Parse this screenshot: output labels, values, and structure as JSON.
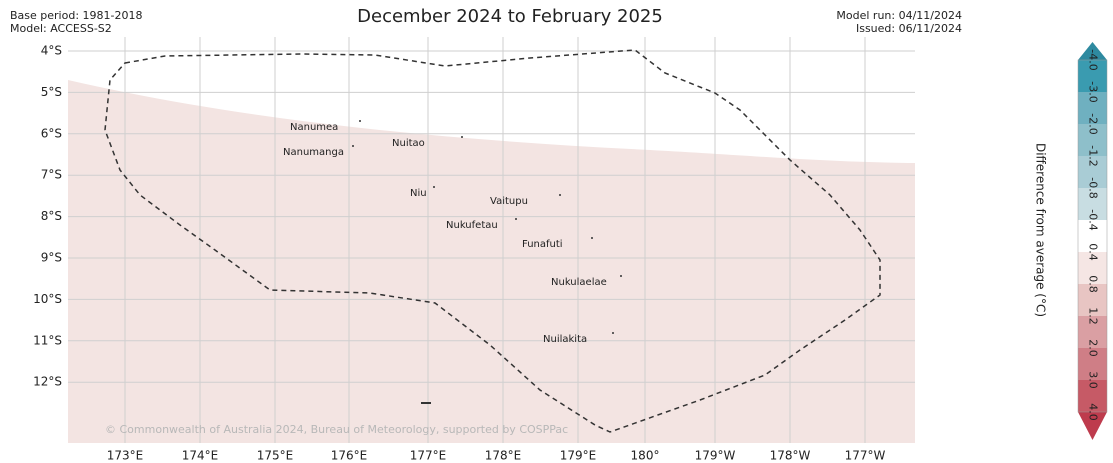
{
  "header": {
    "title": "December 2024 to February 2025",
    "base_period": "Base period: 1981-2018",
    "model": "Model: ACCESS-S2",
    "model_run": "Model run: 04/11/2024",
    "issued": "Issued: 06/11/2024"
  },
  "map": {
    "lat_labels": [
      "4°S",
      "5°S",
      "6°S",
      "7°S",
      "8°S",
      "9°S",
      "10°S",
      "11°S",
      "12°S"
    ],
    "lon_labels": [
      "173°E",
      "174°E",
      "175°E",
      "176°E",
      "177°E",
      "178°E",
      "179°E",
      "180°",
      "179°W",
      "178°W",
      "177°W"
    ],
    "islands": [
      "Nanumea",
      "Nanumanga",
      "Nuitao",
      "Niu",
      "Vaitupu",
      "Nukufetau",
      "Funafuti",
      "Nukulaelae",
      "Nuilakita"
    ],
    "copyright": "© Commonwealth of Australia 2024, Bureau of Meteorology, supported by COSPPac"
  },
  "colorbar": {
    "title": "Difference from average (°C)",
    "labels": [
      "-4.0",
      "-3.0",
      "-2.0",
      "-1.2",
      "-0.8",
      "-0.4",
      "0.4",
      "0.8",
      "1.2",
      "2.0",
      "3.0",
      "4.0"
    ],
    "colors": [
      "#3a9bb0",
      "#6fb0c0",
      "#8ebfca",
      "#a9ccd5",
      "#c8dde2",
      "#ffffff",
      "#f5e6e4",
      "#e8c5c3",
      "#da9fa3",
      "#cf7e86",
      "#c65a66"
    ],
    "over_colors": [
      "#2e8aa0",
      "#be3b4d"
    ]
  }
}
